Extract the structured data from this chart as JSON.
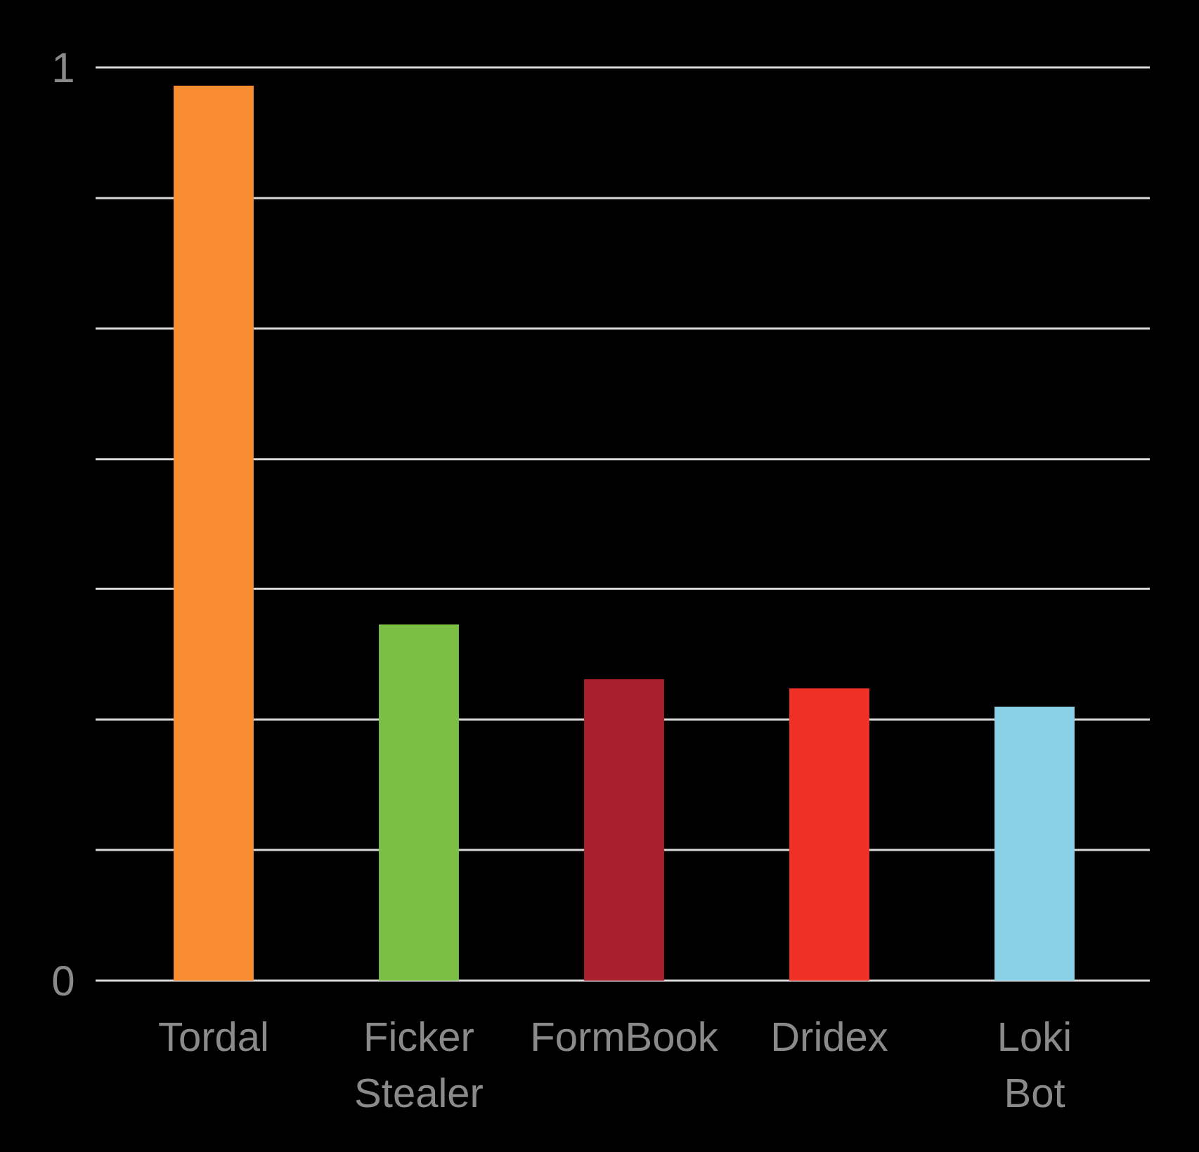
{
  "chart_data": {
    "type": "bar",
    "categories": [
      "Tordal",
      "Ficker Stealer",
      "FormBook",
      "Dridex",
      "Loki Bot"
    ],
    "values": [
      0.98,
      0.39,
      0.33,
      0.32,
      0.3
    ],
    "colors": [
      "#f78c30",
      "#7bbf44",
      "#ab1e2e",
      "#ee3124",
      "#89d0e4"
    ],
    "ylim": [
      0,
      1
    ],
    "yticks": [
      0,
      {
        "value": 0.143,
        "label": null
      },
      {
        "value": 0.286,
        "label": null
      },
      {
        "value": 0.429,
        "label": null
      },
      {
        "value": 0.571,
        "label": null
      },
      {
        "value": 0.714,
        "label": null
      },
      {
        "value": 0.857,
        "label": null
      },
      1
    ],
    "grid": "y"
  }
}
